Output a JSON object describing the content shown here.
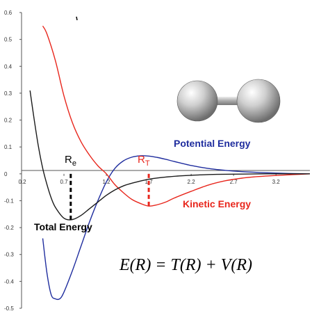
{
  "chart_data": {
    "type": "line",
    "title": "",
    "xlabel": "",
    "ylabel": "",
    "xlim": [
      0.2,
      3.6
    ],
    "ylim": [
      -0.5,
      0.6
    ],
    "x_ticks": [
      0.2,
      0.7,
      1.2,
      1.7,
      2.2,
      2.7,
      3.2
    ],
    "x_tick_labels": [
      "0.2",
      "0.7",
      "1.2",
      "1.7",
      "2.2",
      "2.7",
      "3.2"
    ],
    "y_ticks": [
      0.6,
      0.5,
      0.4,
      0.3,
      0.2,
      0.1,
      0,
      -0.1,
      -0.2,
      -0.3,
      -0.4,
      -0.5
    ],
    "y_tick_labels": [
      "0.6",
      "0.5",
      "0.4",
      "0.3",
      "0.2",
      "0.1",
      "0",
      "-0.1",
      "-0.2",
      "-0.3",
      "-0.4",
      "-0.5"
    ],
    "grid": false,
    "series": [
      {
        "name": "Potential Energy",
        "color": "#1f2d9e",
        "x": [
          0.45,
          0.5,
          0.55,
          0.6,
          0.65,
          0.7,
          0.8,
          0.9,
          1.0,
          1.1,
          1.2,
          1.3,
          1.4,
          1.5,
          1.6,
          1.7,
          1.8,
          1.9,
          2.0,
          2.2,
          2.4,
          2.6,
          2.8,
          3.0,
          3.2,
          3.4,
          3.6
        ],
        "values": [
          -0.24,
          -0.37,
          -0.45,
          -0.465,
          -0.465,
          -0.44,
          -0.36,
          -0.27,
          -0.18,
          -0.1,
          -0.03,
          0.02,
          0.048,
          0.062,
          0.067,
          0.066,
          0.061,
          0.054,
          0.046,
          0.031,
          0.02,
          0.013,
          0.008,
          0.005,
          0.003,
          0.001,
          0.0
        ]
      },
      {
        "name": "Kinetic Energy",
        "color": "#e8261c",
        "x": [
          0.45,
          0.5,
          0.6,
          0.7,
          0.8,
          0.9,
          1.0,
          1.1,
          1.2,
          1.3,
          1.4,
          1.5,
          1.6,
          1.7,
          1.8,
          1.9,
          2.0,
          2.2,
          2.4,
          2.6,
          2.8,
          3.0,
          3.2,
          3.4,
          3.6
        ],
        "values": [
          0.55,
          0.52,
          0.42,
          0.29,
          0.19,
          0.12,
          0.07,
          0.03,
          0.0,
          -0.04,
          -0.07,
          -0.095,
          -0.11,
          -0.12,
          -0.115,
          -0.105,
          -0.09,
          -0.065,
          -0.042,
          -0.026,
          -0.016,
          -0.01,
          -0.006,
          -0.003,
          0.0
        ]
      },
      {
        "name": "Total Energy",
        "color": "#1a1a1a",
        "x": [
          0.3,
          0.35,
          0.4,
          0.45,
          0.5,
          0.55,
          0.6,
          0.7,
          0.8,
          0.9,
          1.0,
          1.1,
          1.2,
          1.3,
          1.4,
          1.5,
          1.7,
          1.9,
          2.1,
          2.3,
          2.5,
          2.8,
          3.1,
          3.4,
          3.6
        ],
        "values": [
          0.31,
          0.2,
          0.1,
          0.02,
          -0.04,
          -0.09,
          -0.125,
          -0.165,
          -0.17,
          -0.155,
          -0.13,
          -0.105,
          -0.08,
          -0.06,
          -0.045,
          -0.035,
          -0.02,
          -0.012,
          -0.007,
          -0.004,
          -0.002,
          -0.001,
          0.0,
          0.0,
          0.0
        ]
      }
    ],
    "markers": [
      {
        "label": "R",
        "subscript": "e",
        "x": 0.78,
        "y_top": 0.0,
        "y_bottom": -0.17,
        "color": "#000000"
      },
      {
        "label": "R",
        "subscript": "T",
        "x": 1.7,
        "y_top": 0.0,
        "y_bottom": -0.12,
        "color": "#e8261c"
      }
    ],
    "labels": {
      "potential": "Potential Energy",
      "kinetic": "Kinetic Energy",
      "total": "Total Energy"
    },
    "equation": "E(R) = T(R) + V(R)",
    "illustration": "diatomic-molecule"
  }
}
